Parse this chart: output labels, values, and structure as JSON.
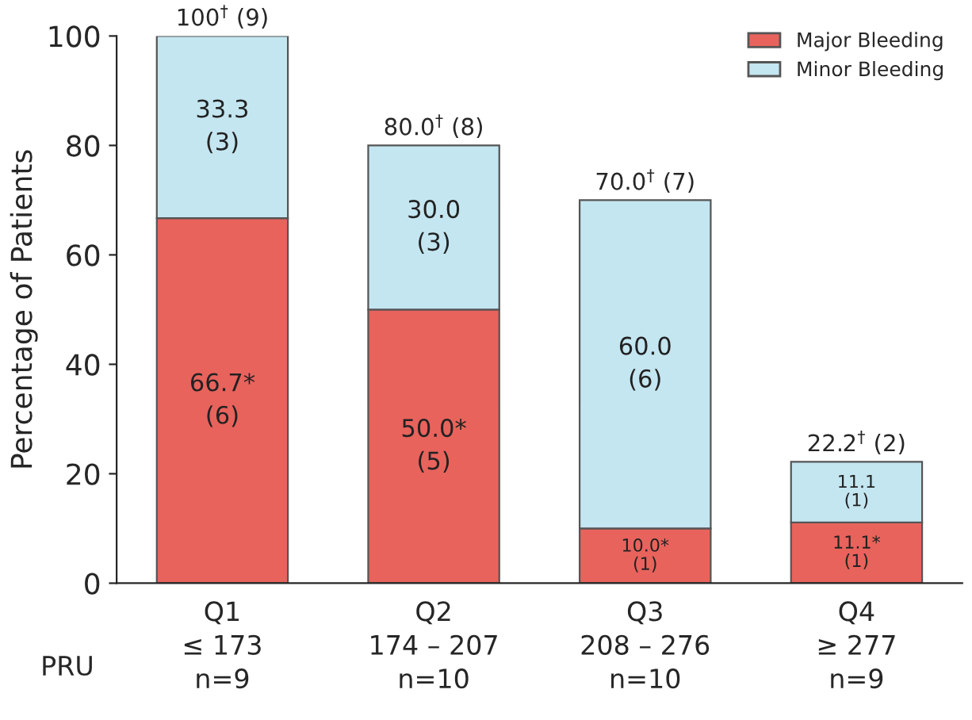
{
  "chart_data": {
    "type": "bar",
    "stacked": true,
    "ylabel": "Percentage of Patients",
    "categories": [
      "Q1\n≤ 173\nn=9",
      "Q2\n174 – 207\nn=10",
      "Q3\n208 – 276\nn=10",
      "Q4\n≥ 277\nn=9"
    ],
    "series": [
      {
        "name": "Major Bleeding",
        "color": "#e8635c",
        "values": [
          66.7,
          50.0,
          10.0,
          11.1
        ],
        "value_labels": [
          "66.7*\n(6)",
          "50.0*\n(5)",
          "10.0*\n(1)",
          "11.1*\n(1)"
        ]
      },
      {
        "name": "Minor Bleeding",
        "color": "#c4e6f1",
        "values": [
          33.3,
          30.0,
          60.0,
          11.1
        ],
        "value_labels": [
          "33.3\n(3)",
          "30.0\n(3)",
          "60.0\n(6)",
          "11.1\n(1)"
        ]
      }
    ],
    "totals": [
      "100$^{†}$ (9)",
      "80.0$^{†}$ (8)",
      "70.0$^{†}$ (7)",
      "22.2$^{†}$ (2)"
    ],
    "annotations": [
      "PRU"
    ],
    "ylim": [
      0,
      100
    ],
    "yticks": [
      0,
      20,
      40,
      60,
      80,
      100
    ],
    "grid": false,
    "legend": "top right"
  }
}
